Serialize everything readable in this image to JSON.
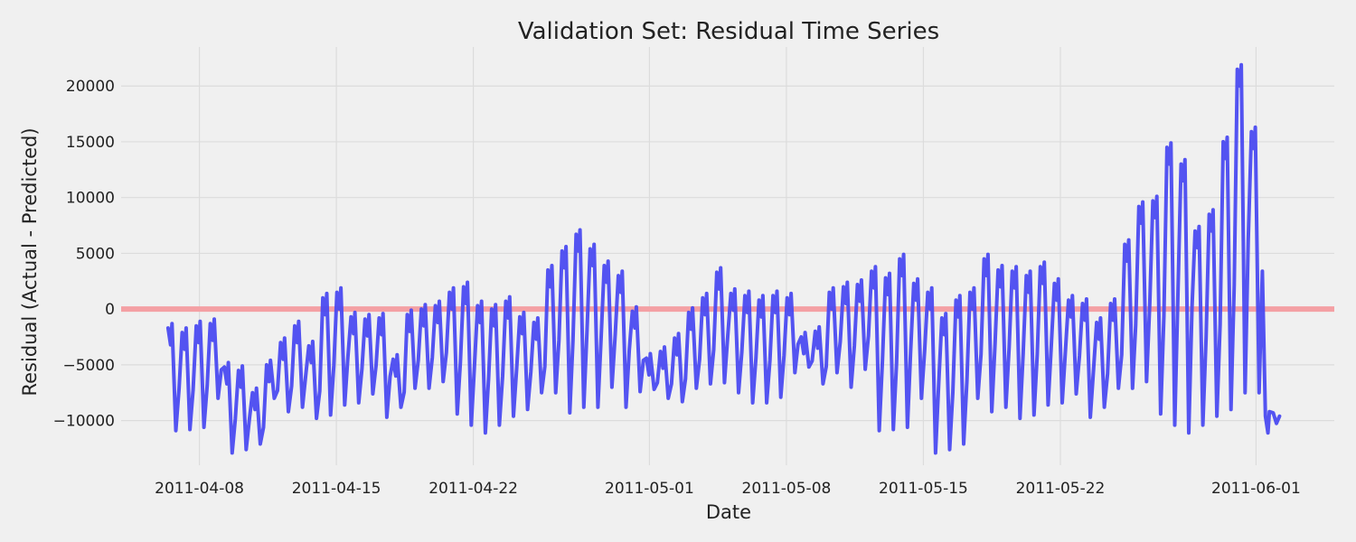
{
  "chart_data": {
    "type": "line",
    "title": "Validation Set: Residual Time Series",
    "xlabel": "Date",
    "ylabel": "Residual (Actual - Predicted)",
    "xlim": [
      "2011-04-04",
      "2011-06-05"
    ],
    "ylim": [
      -14000,
      23500
    ],
    "x_ticks": [
      "2011-04-08",
      "2011-04-15",
      "2011-04-22",
      "2011-05-01",
      "2011-05-08",
      "2011-05-15",
      "2011-05-22",
      "2011-06-01"
    ],
    "y_ticks": [
      -10000,
      -5000,
      0,
      5000,
      10000,
      15000,
      20000
    ],
    "y_tick_labels": [
      "−10000",
      "−5000",
      "0",
      "5000",
      "10000",
      "15000",
      "20000"
    ],
    "grid": true,
    "reference_line": {
      "y": 0,
      "color": "#f4a0a4"
    },
    "series": [
      {
        "color": "#4a4af0",
        "peaks": [
          [
            "2011-04-07",
            -1700
          ],
          [
            "2011-04-07",
            -2100
          ],
          [
            "2011-04-08",
            -1500
          ],
          [
            "2011-04-09",
            -1300
          ],
          [
            "2011-04-10",
            -5200
          ],
          [
            "2011-04-10",
            -5500
          ],
          [
            "2011-04-11",
            -7500
          ],
          [
            "2011-04-12",
            -5000
          ],
          [
            "2011-04-12",
            -3000
          ],
          [
            "2011-04-13",
            -1500
          ],
          [
            "2011-04-14",
            -3300
          ],
          [
            "2011-04-14",
            1000
          ],
          [
            "2011-04-15",
            1500
          ],
          [
            "2011-04-16",
            -700
          ],
          [
            "2011-04-16",
            -900
          ],
          [
            "2011-04-17",
            -800
          ],
          [
            "2011-04-18",
            -4500
          ],
          [
            "2011-04-18",
            -500
          ],
          [
            "2011-04-19",
            0
          ],
          [
            "2011-04-20",
            300
          ],
          [
            "2011-04-21",
            1500
          ],
          [
            "2011-04-21",
            2000
          ],
          [
            "2011-04-22",
            300
          ],
          [
            "2011-04-23",
            0
          ],
          [
            "2011-04-23",
            700
          ],
          [
            "2011-04-24",
            -700
          ],
          [
            "2011-04-25",
            -1200
          ],
          [
            "2011-04-25",
            3500
          ],
          [
            "2011-04-26",
            5200
          ],
          [
            "2011-04-27",
            6700
          ],
          [
            "2011-04-28",
            5400
          ],
          [
            "2011-04-28",
            3900
          ],
          [
            "2011-04-29",
            3000
          ],
          [
            "2011-04-30",
            -200
          ],
          [
            "2011-05-01",
            -4400
          ],
          [
            "2011-05-01",
            -3800
          ],
          [
            "2011-05-02",
            -2600
          ],
          [
            "2011-05-03",
            -300
          ],
          [
            "2011-05-03",
            1000
          ],
          [
            "2011-05-04",
            3300
          ],
          [
            "2011-05-05",
            1400
          ],
          [
            "2011-05-05",
            1200
          ],
          [
            "2011-05-06",
            800
          ],
          [
            "2011-05-07",
            1200
          ],
          [
            "2011-05-07",
            1000
          ],
          [
            "2011-05-08",
            -2500
          ],
          [
            "2011-05-09",
            -2000
          ],
          [
            "2011-05-09",
            1500
          ],
          [
            "2011-05-10",
            2000
          ],
          [
            "2011-05-11",
            2200
          ],
          [
            "2011-05-12",
            3400
          ],
          [
            "2011-05-12",
            2800
          ],
          [
            "2011-05-13",
            4500
          ],
          [
            "2011-05-14",
            2300
          ],
          [
            "2011-05-14",
            1500
          ],
          [
            "2011-05-15",
            -800
          ],
          [
            "2011-05-16",
            800
          ],
          [
            "2011-05-16",
            1500
          ],
          [
            "2011-05-17",
            4500
          ],
          [
            "2011-05-18",
            3500
          ],
          [
            "2011-05-19",
            3400
          ],
          [
            "2011-05-19",
            3000
          ],
          [
            "2011-05-20",
            3800
          ],
          [
            "2011-05-21",
            2300
          ],
          [
            "2011-05-21",
            800
          ],
          [
            "2011-05-22",
            500
          ],
          [
            "2011-05-23",
            -1200
          ],
          [
            "2011-05-23",
            500
          ],
          [
            "2011-05-24",
            5800
          ],
          [
            "2011-05-25",
            9200
          ],
          [
            "2011-05-26",
            9700
          ],
          [
            "2011-05-26",
            14500
          ],
          [
            "2011-05-27",
            13000
          ],
          [
            "2011-05-28",
            7000
          ],
          [
            "2011-05-28",
            8500
          ],
          [
            "2011-05-29",
            15000
          ],
          [
            "2011-05-30",
            21500
          ],
          [
            "2011-05-31",
            15900
          ],
          [
            "2011-06-01",
            -9600
          ]
        ],
        "troughs": [
          [
            -10900,
            -10800,
            -10600,
            -8000,
            -12900,
            -12600,
            -12100,
            -8000,
            -9200,
            -8800,
            -9800,
            -9500,
            -8600,
            -8400,
            -7600,
            -9700,
            -8800,
            -7100,
            -7100,
            -6500,
            -9400,
            -10400,
            -11100,
            -10400,
            -9600,
            -9000,
            -7500,
            -7500,
            -9300,
            -8800,
            -8800,
            -7000,
            -8800,
            -7400,
            -7200,
            -8000,
            -8300,
            -7100,
            -6700,
            -6600,
            -7500,
            -8400,
            -8400,
            -7900,
            -5700,
            -5200,
            -6700,
            -5700,
            -7000,
            -5400
          ]
        ]
      }
    ]
  }
}
